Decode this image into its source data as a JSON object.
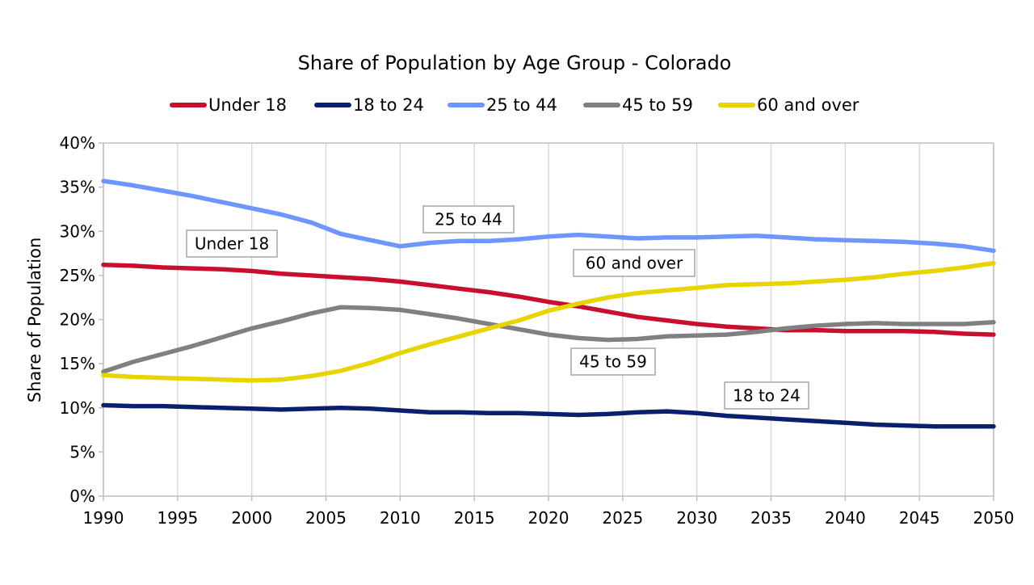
{
  "chart_data": {
    "type": "line",
    "title": "Share of Population by Age Group - Colorado",
    "ylabel": "Share of Population",
    "xlabel": "",
    "xlim": [
      1990,
      2050
    ],
    "ylim": [
      0,
      40
    ],
    "x_ticks": [
      "1990",
      "1995",
      "2000",
      "2005",
      "2010",
      "2015",
      "2020",
      "2025",
      "2030",
      "2035",
      "2040",
      "2045",
      "2050"
    ],
    "y_ticks": [
      "0%",
      "5%",
      "10%",
      "15%",
      "20%",
      "25%",
      "30%",
      "35%",
      "40%"
    ],
    "grid": "vertical",
    "legend_position": "top",
    "x": [
      1990,
      1992,
      1994,
      1996,
      1998,
      2000,
      2002,
      2004,
      2006,
      2008,
      2010,
      2012,
      2014,
      2016,
      2018,
      2020,
      2022,
      2024,
      2026,
      2028,
      2030,
      2032,
      2034,
      2036,
      2038,
      2040,
      2042,
      2044,
      2046,
      2048,
      2050
    ],
    "series": [
      {
        "name": "Under 18",
        "color": "#c8102e",
        "values": [
          26.2,
          26.1,
          25.9,
          25.8,
          25.7,
          25.5,
          25.2,
          25.0,
          24.8,
          24.6,
          24.3,
          23.9,
          23.5,
          23.1,
          22.6,
          22.0,
          21.5,
          20.9,
          20.3,
          19.9,
          19.5,
          19.2,
          19.0,
          18.8,
          18.8,
          18.7,
          18.7,
          18.7,
          18.6,
          18.4,
          18.3
        ]
      },
      {
        "name": "18 to 24",
        "color": "#0a1f6e",
        "values": [
          10.3,
          10.2,
          10.2,
          10.1,
          10.0,
          9.9,
          9.8,
          9.9,
          10.0,
          9.9,
          9.7,
          9.5,
          9.5,
          9.4,
          9.4,
          9.3,
          9.2,
          9.3,
          9.5,
          9.6,
          9.4,
          9.1,
          8.9,
          8.7,
          8.5,
          8.3,
          8.1,
          8.0,
          7.9,
          7.9,
          7.9
        ]
      },
      {
        "name": "25 to 44",
        "color": "#6f95ff",
        "values": [
          35.7,
          35.2,
          34.6,
          34.0,
          33.3,
          32.6,
          31.9,
          31.0,
          29.7,
          29.0,
          28.3,
          28.7,
          28.9,
          28.9,
          29.1,
          29.4,
          29.6,
          29.4,
          29.2,
          29.3,
          29.3,
          29.4,
          29.5,
          29.3,
          29.1,
          29.0,
          28.9,
          28.8,
          28.6,
          28.3,
          27.8
        ]
      },
      {
        "name": "45 to 59",
        "color": "#808080",
        "values": [
          14.1,
          15.2,
          16.1,
          17.0,
          18.0,
          19.0,
          19.8,
          20.7,
          21.4,
          21.3,
          21.1,
          20.6,
          20.1,
          19.5,
          18.9,
          18.3,
          17.9,
          17.7,
          17.8,
          18.1,
          18.2,
          18.3,
          18.6,
          19.0,
          19.3,
          19.5,
          19.6,
          19.5,
          19.5,
          19.5,
          19.7
        ]
      },
      {
        "name": "60 and over",
        "color": "#e8d500",
        "values": [
          13.7,
          13.5,
          13.4,
          13.3,
          13.2,
          13.1,
          13.2,
          13.6,
          14.2,
          15.1,
          16.2,
          17.2,
          18.1,
          19.0,
          19.9,
          21.0,
          21.8,
          22.5,
          23.0,
          23.3,
          23.6,
          23.9,
          24.0,
          24.1,
          24.3,
          24.5,
          24.8,
          25.2,
          25.5,
          25.9,
          26.4
        ]
      }
    ],
    "annotations": [
      {
        "text": "Under 18",
        "series": "Under 18"
      },
      {
        "text": "25 to 44",
        "series": "25 to 44"
      },
      {
        "text": "60 and over",
        "series": "60 and over"
      },
      {
        "text": "45 to 59",
        "series": "45 to 59"
      },
      {
        "text": "18 to 24",
        "series": "18 to 24"
      }
    ]
  }
}
